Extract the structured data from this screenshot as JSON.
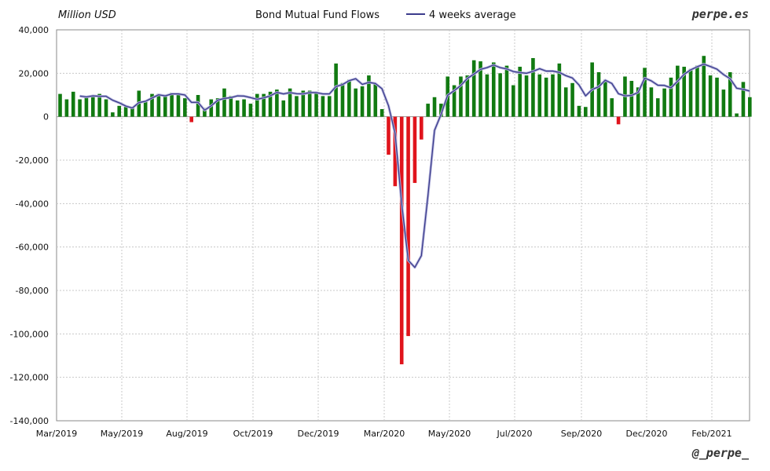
{
  "header": {
    "units": "Million USD",
    "title": "Bond Mutual Fund Flows",
    "legend_label": "4 weeks average",
    "brand": "perpe.es",
    "handle": "@_perpe_"
  },
  "colors": {
    "positive_bar": "#117a11",
    "negative_bar": "#e0141c",
    "average_line": "#3c3c8c",
    "grid": "#c8c8c8"
  },
  "chart_data": {
    "type": "bar",
    "units": "Million USD",
    "title": "Bond Mutual Fund Flows",
    "frequency": "weekly",
    "ylim": [
      -140000,
      40000
    ],
    "y_ticks": [
      "40,000",
      "20,000",
      "0",
      "-20,000",
      "-40,000",
      "-60,000",
      "-80,000",
      "-100,000",
      "-120,000",
      "-140,000"
    ],
    "x_ticks": [
      "Mar/2019",
      "May/2019",
      "Aug/2019",
      "Oct/2019",
      "Dec/2019",
      "Mar/2020",
      "May/2020",
      "Jul/2020",
      "Sep/2020",
      "Dec/2020",
      "Feb/2021"
    ],
    "grid": true,
    "legend": "top-center",
    "series": [
      {
        "kind": "bar",
        "values": [
          10500,
          8000,
          11500,
          8000,
          9000,
          10000,
          10500,
          8000,
          2000,
          5000,
          4500,
          4500,
          12000,
          7500,
          10500,
          10500,
          10000,
          11000,
          10500,
          8500,
          -2500,
          10000,
          4000,
          8000,
          8500,
          13000,
          9500,
          7500,
          8000,
          6000,
          10500,
          10500,
          11500,
          12500,
          7500,
          13000,
          9500,
          12000,
          12000,
          11000,
          9500,
          9500,
          24500,
          15500,
          17000,
          13000,
          14000,
          19000,
          15000,
          3500,
          -17500,
          -32000,
          -114000,
          -101000,
          -30500,
          -10500,
          6000,
          9000,
          6000,
          18500,
          14500,
          18500,
          19000,
          26000,
          25500,
          19500,
          25000,
          20000,
          23500,
          14500,
          23000,
          19000,
          27000,
          19500,
          18000,
          19500,
          24500,
          13500,
          15500,
          5000,
          4500,
          25000,
          20500,
          17000,
          8500,
          -3500,
          18500,
          16500,
          13500,
          22500,
          13500,
          8500,
          13000,
          18000,
          23500,
          23000,
          22000,
          23500,
          28000,
          19000,
          18000,
          12500,
          20500,
          1500,
          16000,
          9000
        ]
      },
      {
        "kind": "line",
        "name": "4 weeks average",
        "values": [
          null,
          null,
          null,
          9500,
          9100,
          9600,
          9400,
          9400,
          7600,
          6400,
          4900,
          4000,
          6500,
          7100,
          8600,
          10100,
          9600,
          10500,
          10500,
          10000,
          6600,
          6600,
          3000,
          5000,
          7600,
          8400,
          8800,
          9600,
          9500,
          8800,
          8000,
          8700,
          9600,
          11200,
          10500,
          11100,
          10600,
          10500,
          11100,
          11100,
          10500,
          10500,
          13900,
          14800,
          16600,
          17500,
          14900,
          15800,
          15300,
          12900,
          5000,
          -7700,
          -40000,
          -66100,
          -69400,
          -64000,
          -36400,
          -6300,
          1100,
          9900,
          12000,
          14400,
          17600,
          19600,
          21800,
          22600,
          23800,
          22600,
          22000,
          20800,
          20300,
          20000,
          20900,
          22100,
          21000,
          21000,
          20400,
          18900,
          17800,
          14600,
          9600,
          12500,
          13800,
          16800,
          15300,
          10600,
          9600,
          9800,
          11200,
          17800,
          16500,
          14500,
          14400,
          13300,
          16300,
          19500,
          21600,
          23000,
          24200,
          23100,
          21900,
          19400,
          17500,
          13100,
          12600,
          11800
        ]
      }
    ]
  }
}
